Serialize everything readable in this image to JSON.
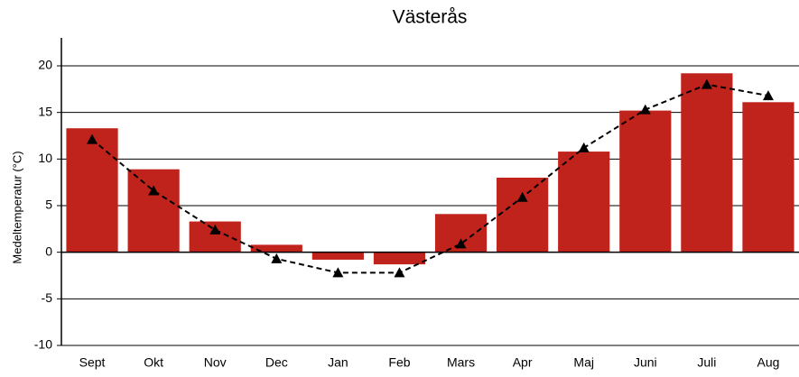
{
  "chart_data": {
    "type": "bar",
    "title": "Västerås",
    "y_label": "Medeltemperatur (°C)",
    "categories": [
      "Sept",
      "Okt",
      "Nov",
      "Dec",
      "Jan",
      "Feb",
      "Mars",
      "Apr",
      "Maj",
      "Juni",
      "Juli",
      "Aug"
    ],
    "series": [
      {
        "type": "bar",
        "color": "#c0231b",
        "values": [
          13.3,
          8.9,
          3.3,
          0.8,
          -0.8,
          -1.3,
          4.1,
          8.0,
          10.8,
          15.2,
          19.2,
          16.1
        ]
      },
      {
        "type": "line",
        "color": "#000000",
        "dashed": true,
        "marker": "triangle",
        "values": [
          12.1,
          6.6,
          2.4,
          -0.7,
          -2.2,
          -2.2,
          0.9,
          5.9,
          11.2,
          15.3,
          18.0,
          16.8
        ]
      }
    ],
    "ylim": [
      -10,
      23
    ],
    "yticks": [
      -10,
      -5,
      0,
      5,
      10,
      15,
      20
    ],
    "grid": true
  }
}
